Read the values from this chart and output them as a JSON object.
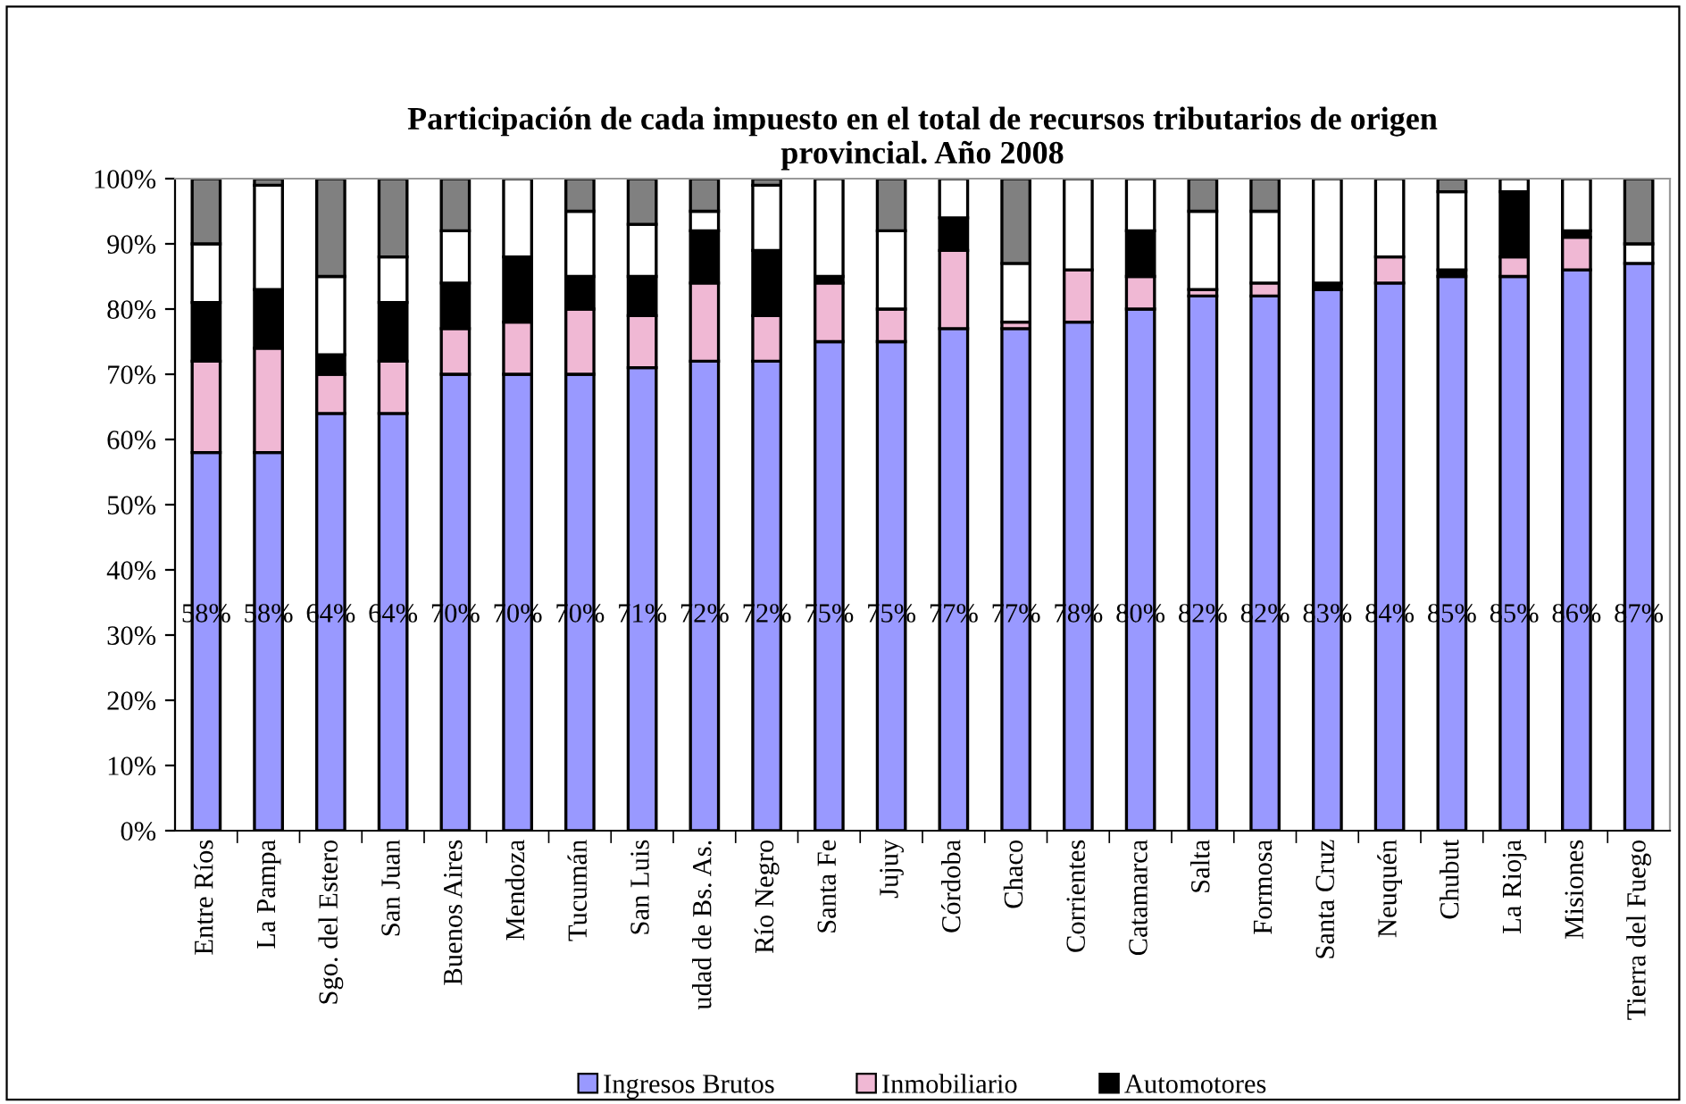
{
  "chart_data": {
    "type": "bar",
    "stacked": true,
    "title": "Participación de cada impuesto en el total de recursos tributarios de origen\nprovincial. Año 2008",
    "categories": [
      "Entre Ríos",
      "La Pampa",
      "Sgo. del Estero",
      "San Juan",
      "Buenos Aires",
      "Mendoza",
      "Tucumán",
      "San Luis",
      "udad de Bs. As.",
      "Río Negro",
      "Santa Fe",
      "Jujuy",
      "Córdoba",
      "Chaco",
      "Corrientes",
      "Catamarca",
      "Salta",
      "Formosa",
      "Santa Cruz",
      "Neuquén",
      "Chubut",
      "La Rioja",
      "Misiones",
      "Tierra del Fuego"
    ],
    "series": [
      {
        "name": "Ingresos Brutos",
        "color": "#9999ff",
        "values": [
          58,
          58,
          64,
          64,
          70,
          70,
          70,
          71,
          72,
          72,
          75,
          75,
          77,
          77,
          78,
          80,
          82,
          82,
          83,
          84,
          85,
          85,
          86,
          87
        ],
        "value_labels": [
          "58%",
          "58%",
          "64%",
          "64%",
          "70%",
          "70%",
          "70%",
          "71%",
          "72%",
          "72%",
          "75%",
          "75%",
          "77%",
          "77%",
          "78%",
          "80%",
          "82%",
          "82%",
          "83%",
          "84%",
          "85%",
          "85%",
          "86%",
          "87%"
        ]
      },
      {
        "name": "Inmobiliario",
        "color": "#f0b8d4",
        "values": [
          14,
          16,
          6,
          8,
          7,
          8,
          10,
          8,
          12,
          7,
          9,
          5,
          12,
          1,
          8,
          5,
          1,
          2,
          0,
          4,
          0,
          3,
          5,
          0
        ]
      },
      {
        "name": "Automotores",
        "color": "#000000",
        "values": [
          9,
          9,
          3,
          9,
          7,
          10,
          5,
          6,
          8,
          10,
          1,
          0,
          5,
          0,
          0,
          7,
          0,
          0,
          1,
          0,
          1,
          10,
          1,
          0
        ]
      },
      {
        "color": "#ffffff",
        "values": [
          9,
          16,
          12,
          7,
          8,
          12,
          10,
          8,
          3,
          10,
          15,
          12,
          6,
          9,
          14,
          8,
          12,
          11,
          16,
          12,
          12,
          2,
          8,
          3
        ]
      },
      {
        "color": "#808080",
        "values": [
          10,
          1,
          15,
          12,
          8,
          0,
          5,
          7,
          5,
          1,
          0,
          8,
          0,
          13,
          0,
          0,
          5,
          5,
          0,
          0,
          2,
          0,
          0,
          10
        ]
      }
    ],
    "ylim": [
      0,
      100
    ],
    "yticks": [
      {
        "value": 0,
        "label": "0%"
      },
      {
        "value": 10,
        "label": "10%"
      },
      {
        "value": 20,
        "label": "20%"
      },
      {
        "value": 30,
        "label": "30%"
      },
      {
        "value": 40,
        "label": "40%"
      },
      {
        "value": 50,
        "label": "50%"
      },
      {
        "value": 60,
        "label": "60%"
      },
      {
        "value": 70,
        "label": "70%"
      },
      {
        "value": 80,
        "label": "80%"
      },
      {
        "value": 90,
        "label": "90%"
      },
      {
        "value": 100,
        "label": "100%"
      }
    ],
    "legend": "bottom"
  }
}
